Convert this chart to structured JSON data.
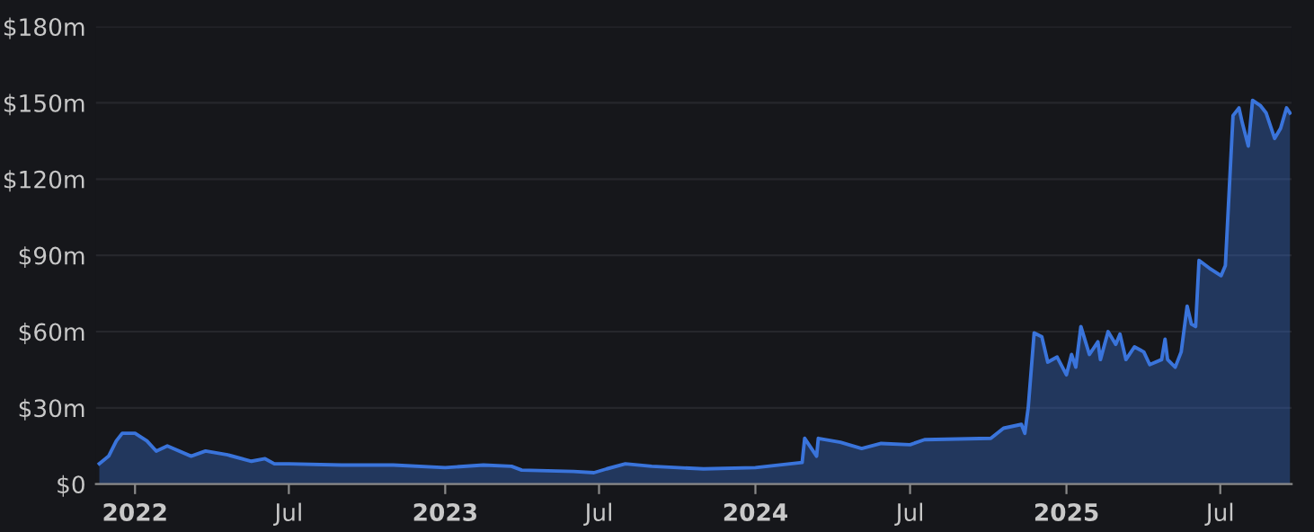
{
  "chart_data": {
    "type": "area",
    "x": [
      "2021-11-20",
      "2021-12-01",
      "2021-12-10",
      "2021-12-17",
      "2022-01-01",
      "2022-01-15",
      "2022-01-26",
      "2022-02-08",
      "2022-03-08",
      "2022-03-25",
      "2022-04-20",
      "2022-05-18",
      "2022-06-03",
      "2022-06-14",
      "2022-07-01",
      "2022-09-01",
      "2022-11-01",
      "2023-01-01",
      "2023-02-15",
      "2023-03-20",
      "2023-04-01",
      "2023-06-01",
      "2023-06-25",
      "2023-07-10",
      "2023-08-01",
      "2023-09-01",
      "2023-11-01",
      "2024-01-01",
      "2024-02-25",
      "2024-02-28",
      "2024-03-13",
      "2024-03-15",
      "2024-04-10",
      "2024-05-05",
      "2024-05-28",
      "2024-07-01",
      "2024-07-18",
      "2024-10-04",
      "2024-10-19",
      "2024-11-09",
      "2024-11-13",
      "2024-11-17",
      "2024-11-24",
      "2024-12-03",
      "2024-12-10",
      "2024-12-21",
      "2025-01-01",
      "2025-01-07",
      "2025-01-12",
      "2025-01-18",
      "2025-01-28",
      "2025-02-07",
      "2025-02-10",
      "2025-02-19",
      "2025-02-28",
      "2025-03-05",
      "2025-03-12",
      "2025-03-22",
      "2025-04-02",
      "2025-04-09",
      "2025-04-23",
      "2025-04-27",
      "2025-04-30",
      "2025-05-09",
      "2025-05-16",
      "2025-05-23",
      "2025-05-28",
      "2025-06-02",
      "2025-06-06",
      "2025-06-18",
      "2025-07-02",
      "2025-07-07",
      "2025-07-16",
      "2025-07-23",
      "2025-07-27",
      "2025-08-03",
      "2025-08-08",
      "2025-08-17",
      "2025-08-24",
      "2025-09-03",
      "2025-09-10",
      "2025-09-17",
      "2025-09-21"
    ],
    "series": [
      {
        "color": "#3a74db",
        "values": [
          8,
          11,
          17,
          20,
          20,
          17,
          13,
          15,
          11,
          13,
          11.5,
          9,
          10,
          8,
          8,
          7.5,
          7.5,
          6.5,
          7.5,
          7,
          5.5,
          5,
          4.5,
          6,
          8,
          7,
          6,
          6.5,
          8.5,
          18,
          11,
          18,
          16.5,
          14,
          16,
          15.5,
          17.5,
          18,
          22,
          23.5,
          20,
          30,
          59.5,
          58,
          48,
          50,
          43,
          51,
          46,
          62,
          51,
          56,
          49,
          60,
          55,
          59,
          49,
          54,
          52,
          47,
          49,
          57,
          49,
          46,
          52,
          70,
          63,
          62,
          88,
          85,
          82,
          86,
          145,
          148,
          142,
          133,
          151,
          149,
          146,
          136,
          140,
          148,
          146
        ]
      }
    ],
    "xlim": [
      "2021-11-16",
      "2025-09-23"
    ],
    "xticks": [
      {
        "value": "2022-01-01",
        "label": "2022"
      },
      {
        "value": "2022-07-01",
        "label": "Jul"
      },
      {
        "value": "2023-01-01",
        "label": "2023"
      },
      {
        "value": "2023-07-01",
        "label": "Jul"
      },
      {
        "value": "2024-01-01",
        "label": "2024"
      },
      {
        "value": "2024-07-01",
        "label": "Jul"
      },
      {
        "value": "2025-01-01",
        "label": "2025"
      },
      {
        "value": "2025-07-01",
        "label": "Jul"
      }
    ],
    "ylim": [
      0,
      180
    ],
    "yticks": [
      {
        "value": 0,
        "label": "$0"
      },
      {
        "value": 30,
        "label": "$30m"
      },
      {
        "value": 60,
        "label": "$60m"
      },
      {
        "value": 90,
        "label": "$90m"
      },
      {
        "value": 120,
        "label": "$120m"
      },
      {
        "value": 150,
        "label": "$150m"
      },
      {
        "value": 180,
        "label": "$180m"
      }
    ],
    "grid": "y"
  }
}
